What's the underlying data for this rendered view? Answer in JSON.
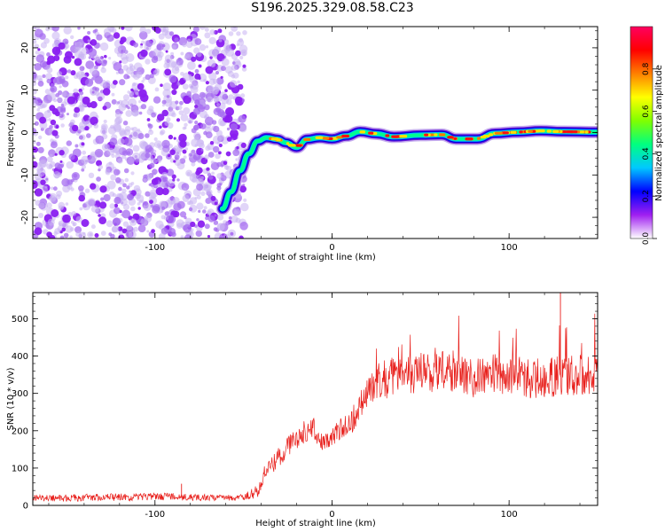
{
  "figure_title": "S196.2025.329.08.58.C23",
  "chart_data": [
    {
      "type": "heatmap",
      "title": "",
      "xlabel": "Height of straight line (km)",
      "ylabel": "Frequency (Hz)",
      "xlim": [
        -169,
        150
      ],
      "ylim": [
        -25,
        25
      ],
      "xticks": [
        -100,
        0,
        100
      ],
      "yticks": [
        -20,
        -10,
        0,
        10,
        20
      ],
      "grid": false,
      "colorbar": {
        "label": "Normalized spectral amplitude",
        "range": [
          0,
          1
        ],
        "ticks": [
          "0.0",
          "0.2",
          "0.4",
          "0.6",
          "0.8"
        ],
        "colors": [
          "#ffffff",
          "#a020f0",
          "#0000ff",
          "#00c8ff",
          "#00ff80",
          "#80ff00",
          "#ffff00",
          "#ff8000",
          "#ff0000",
          "#ff0060"
        ]
      },
      "noise_region_x": [
        -169,
        -54
      ],
      "ridge": [
        {
          "x": -62,
          "y": -18
        },
        {
          "x": -57,
          "y": -14
        },
        {
          "x": -52,
          "y": -9
        },
        {
          "x": -47,
          "y": -5
        },
        {
          "x": -42,
          "y": -2
        },
        {
          "x": -37,
          "y": -1.2
        },
        {
          "x": -31,
          "y": -1.6
        },
        {
          "x": -26,
          "y": -2.4
        },
        {
          "x": -20,
          "y": -3.5
        },
        {
          "x": -14,
          "y": -1.6
        },
        {
          "x": -7,
          "y": -1.2
        },
        {
          "x": 0,
          "y": -1.5
        },
        {
          "x": 8,
          "y": -0.8
        },
        {
          "x": 16,
          "y": 0.2
        },
        {
          "x": 25,
          "y": -0.3
        },
        {
          "x": 35,
          "y": -1.0
        },
        {
          "x": 50,
          "y": -0.6
        },
        {
          "x": 62,
          "y": -0.5
        },
        {
          "x": 70,
          "y": -1.5
        },
        {
          "x": 82,
          "y": -1.5
        },
        {
          "x": 92,
          "y": -0.2
        },
        {
          "x": 105,
          "y": 0.1
        },
        {
          "x": 118,
          "y": 0.4
        },
        {
          "x": 130,
          "y": 0.2
        },
        {
          "x": 150,
          "y": 0.1
        }
      ]
    },
    {
      "type": "line",
      "title": "",
      "xlabel": "Height of straight line (km)",
      "ylabel": "SNR (10 * v/v)",
      "xlim": [
        -169,
        150
      ],
      "ylim": [
        0,
        570
      ],
      "xticks": [
        -100,
        0,
        100
      ],
      "yticks": [
        0,
        100,
        200,
        300,
        400,
        500
      ],
      "grid": false,
      "series": [
        {
          "name": "SNR",
          "color": "#e8201c",
          "x": [
            -169,
            -150,
            -120,
            -100,
            -80,
            -60,
            -48,
            -42,
            -38,
            -32,
            -26,
            -20,
            -15,
            -10,
            -5,
            0,
            5,
            10,
            15,
            20,
            25,
            30,
            40,
            50,
            60,
            70,
            80,
            90,
            100,
            110,
            120,
            130,
            140,
            150
          ],
          "values": [
            20,
            20,
            22,
            24,
            22,
            20,
            25,
            40,
            85,
            120,
            150,
            180,
            200,
            205,
            165,
            185,
            205,
            220,
            255,
            300,
            335,
            340,
            350,
            355,
            360,
            360,
            340,
            350,
            350,
            340,
            345,
            345,
            350,
            355
          ],
          "spread": [
            8,
            10,
            10,
            10,
            9,
            8,
            10,
            20,
            25,
            25,
            28,
            30,
            30,
            30,
            25,
            25,
            30,
            35,
            40,
            45,
            50,
            55,
            55,
            55,
            55,
            55,
            55,
            55,
            55,
            55,
            55,
            55,
            55,
            55
          ]
        }
      ],
      "annotations": [
        {
          "x": -85,
          "y": 58,
          "label": ""
        },
        {
          "x": 129,
          "y": 572,
          "label": ""
        }
      ]
    }
  ]
}
